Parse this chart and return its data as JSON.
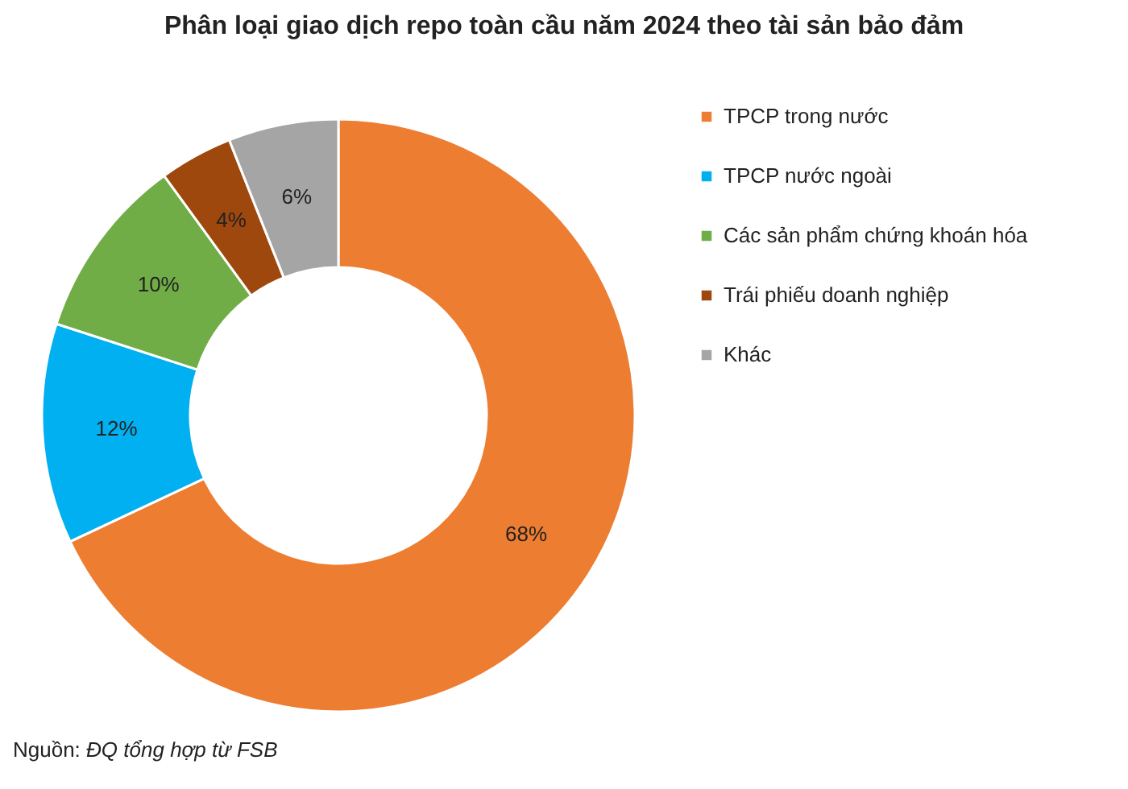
{
  "chart_data": {
    "type": "donut",
    "title": "Phân loại giao dịch repo toàn cầu năm 2024 theo tài sản bảo đảm",
    "categories": [
      "TPCP trong nước",
      "TPCP nước ngoài",
      "Các sản phẩm chứng khoán hóa",
      "Trái phiếu doanh nghiệp",
      "Khác"
    ],
    "values": [
      68,
      12,
      10,
      4,
      6
    ],
    "colors": [
      "#ed7d31",
      "#00b0f0",
      "#70ad47",
      "#9e480e",
      "#a5a5a5"
    ],
    "value_labels": [
      "68%",
      "12%",
      "10%",
      "4%",
      "6%"
    ],
    "legend": "right",
    "annotations": [
      "Nguồn: ĐQ tổng hợp từ FSB"
    ]
  }
}
